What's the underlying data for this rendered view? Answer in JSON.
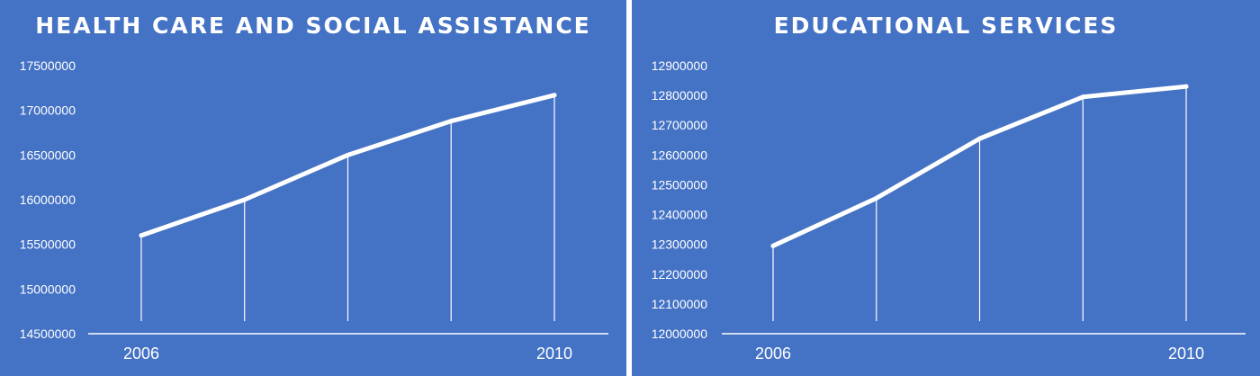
{
  "colors": {
    "background": "#4472c4",
    "line": "#ffffff",
    "text": "#ffffff"
  },
  "chart_data": [
    {
      "type": "line",
      "title": "HEALTH CARE AND SOCIAL ASSISTANCE",
      "x": [
        2006,
        2007,
        2008,
        2009,
        2010
      ],
      "x_tick_labels": [
        "2006",
        "",
        "",
        "",
        "2010"
      ],
      "values": [
        15600000,
        16000000,
        16500000,
        16880000,
        17170000
      ],
      "ylim": [
        14500000,
        17500000
      ],
      "y_ticks": [
        14500000,
        15000000,
        15500000,
        16000000,
        16500000,
        17000000,
        17500000
      ],
      "drop_lines": true,
      "grid": false
    },
    {
      "type": "line",
      "title": "EDUCATIONAL SERVICES",
      "x": [
        2006,
        2007,
        2008,
        2009,
        2010
      ],
      "x_tick_labels": [
        "2006",
        "",
        "",
        "",
        "2010"
      ],
      "values": [
        12295000,
        12455000,
        12655000,
        12795000,
        12830000
      ],
      "ylim": [
        12000000,
        12900000
      ],
      "y_ticks": [
        12000000,
        12100000,
        12200000,
        12300000,
        12400000,
        12500000,
        12600000,
        12700000,
        12800000,
        12900000
      ],
      "drop_lines": true,
      "grid": false
    }
  ]
}
